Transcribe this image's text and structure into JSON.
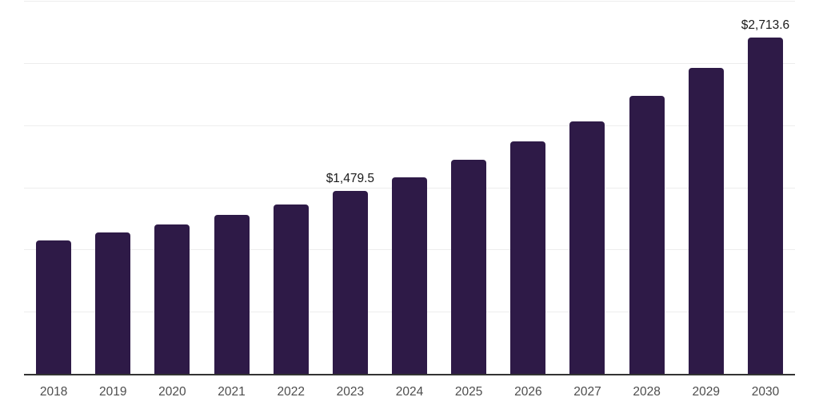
{
  "chart_data": {
    "type": "bar",
    "categories": [
      "2018",
      "2019",
      "2020",
      "2021",
      "2022",
      "2023",
      "2024",
      "2025",
      "2026",
      "2027",
      "2028",
      "2029",
      "2030"
    ],
    "values": [
      1080,
      1145,
      1210,
      1287,
      1370,
      1479.5,
      1589,
      1730,
      1878,
      2039,
      2239,
      2464,
      2713.6
    ],
    "data_labels": [
      {
        "category": "2023",
        "text": "$1,479.5"
      },
      {
        "category": "2030",
        "text": "$2,713.6"
      }
    ],
    "title": "",
    "xlabel": "",
    "ylabel": "",
    "ylim": [
      0,
      3000
    ],
    "gridline_step": 500,
    "grid_on": true,
    "y_tick_labels_shown": false,
    "legend": "none",
    "colors": {
      "bar": "#2e1a47",
      "gridline": "#ededed",
      "axis_line": "#333333",
      "tick_label": "#4d4d4d",
      "data_label": "#1a1a1a",
      "background": "#ffffff"
    }
  }
}
